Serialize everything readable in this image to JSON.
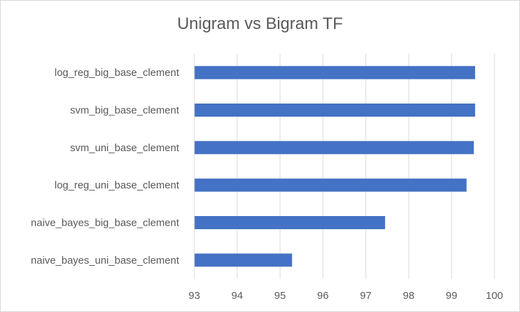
{
  "chart_data": {
    "type": "bar",
    "orientation": "horizontal",
    "title": "Unigram vs Bigram TF",
    "categories": [
      "log_reg_big_base_clement",
      "svm_big_base_clement",
      "svm_uni_base_clement",
      "log_reg_uni_base_clement",
      "naive_bayes_big_base_clement",
      "naive_bayes_uni_base_clement"
    ],
    "values": [
      99.55,
      99.55,
      99.52,
      99.35,
      97.45,
      95.28
    ],
    "xlim": [
      93,
      100
    ],
    "xticks": [
      "93",
      "94",
      "95",
      "96",
      "97",
      "98",
      "99",
      "100"
    ],
    "grid": "vertical",
    "legend": "none",
    "bar_color": "#4472C4"
  }
}
